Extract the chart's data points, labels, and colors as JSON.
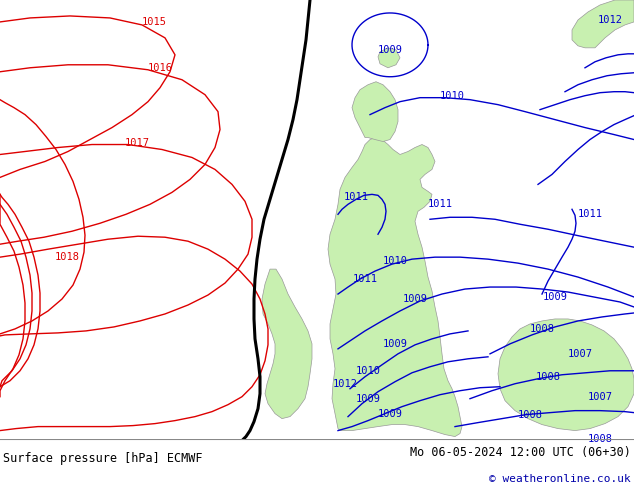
{
  "title_left": "Surface pressure [hPa] ECMWF",
  "title_right": "Mo 06-05-2024 12:00 UTC (06+30)",
  "copyright": "© weatheronline.co.uk",
  "bg_color": "#e2e2e2",
  "land_color": "#c8f0b0",
  "border_color": "#aaaaaa",
  "footer_bg": "#cccccc",
  "fig_width": 6.34,
  "fig_height": 4.9,
  "dpi": 100,
  "isobar_color_red": "#dd0000",
  "isobar_color_blue": "#0000cc",
  "isobar_color_black": "#000000",
  "label_fontsize": 7.5,
  "footer_fontsize": 8.5
}
